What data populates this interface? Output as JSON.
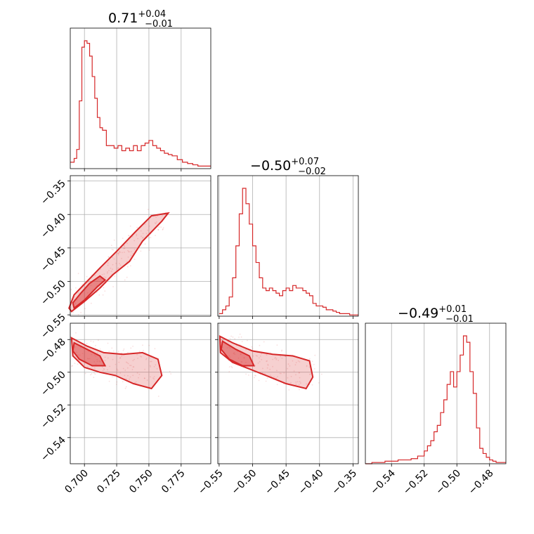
{
  "figure": {
    "accent_color": "#d62728",
    "background": "#ffffff"
  },
  "chart_data": [
    {
      "type": "histogram",
      "panel": "marginal-param-1",
      "title": {
        "median": "0.71",
        "plus": "+0.04",
        "minus": "−0.01"
      },
      "xlim": [
        0.689,
        0.798
      ],
      "xticks": [
        "0.700",
        "0.725",
        "0.750",
        "0.775"
      ],
      "xtick_values": [
        0.7,
        0.725,
        0.75,
        0.775
      ],
      "grid": true,
      "x": [
        0.689,
        0.692,
        0.694,
        0.696,
        0.698,
        0.7,
        0.702,
        0.704,
        0.706,
        0.708,
        0.71,
        0.712,
        0.714,
        0.717,
        0.72,
        0.723,
        0.726,
        0.729,
        0.732,
        0.735,
        0.738,
        0.741,
        0.744,
        0.747,
        0.75,
        0.753,
        0.756,
        0.759,
        0.762,
        0.765,
        0.768,
        0.772,
        0.776,
        0.78,
        0.784,
        0.788,
        0.792,
        0.796
      ],
      "density": [
        0.05,
        0.08,
        0.15,
        0.53,
        0.95,
        1.0,
        0.98,
        0.88,
        0.72,
        0.55,
        0.4,
        0.32,
        0.3,
        0.18,
        0.18,
        0.16,
        0.18,
        0.14,
        0.16,
        0.14,
        0.18,
        0.14,
        0.18,
        0.2,
        0.22,
        0.18,
        0.16,
        0.14,
        0.12,
        0.11,
        0.1,
        0.07,
        0.05,
        0.04,
        0.03,
        0.02,
        0.02,
        0.02
      ]
    },
    {
      "type": "histogram",
      "panel": "marginal-param-2",
      "title": {
        "median": "−0.50",
        "plus": "+0.07",
        "minus": "−0.02"
      },
      "xlim": [
        -0.552,
        -0.342
      ],
      "xticks": [
        "−0.55",
        "−0.50",
        "−0.45",
        "−0.40",
        "−0.35"
      ],
      "xtick_values": [
        -0.55,
        -0.5,
        -0.45,
        -0.4,
        -0.35
      ],
      "grid": true,
      "x": [
        -0.55,
        -0.545,
        -0.54,
        -0.535,
        -0.53,
        -0.525,
        -0.52,
        -0.515,
        -0.51,
        -0.505,
        -0.5,
        -0.495,
        -0.49,
        -0.485,
        -0.48,
        -0.475,
        -0.47,
        -0.465,
        -0.46,
        -0.455,
        -0.45,
        -0.445,
        -0.44,
        -0.435,
        -0.43,
        -0.425,
        -0.42,
        -0.415,
        -0.41,
        -0.405,
        -0.4,
        -0.395,
        -0.39,
        -0.385,
        -0.38,
        -0.375,
        -0.37,
        -0.365,
        -0.36,
        -0.355,
        -0.35,
        -0.345
      ],
      "density": [
        0.02,
        0.05,
        0.08,
        0.15,
        0.3,
        0.55,
        0.8,
        1.0,
        0.88,
        0.72,
        0.55,
        0.42,
        0.3,
        0.22,
        0.2,
        0.22,
        0.2,
        0.18,
        0.16,
        0.2,
        0.22,
        0.2,
        0.24,
        0.22,
        0.22,
        0.2,
        0.18,
        0.16,
        0.1,
        0.08,
        0.08,
        0.07,
        0.05,
        0.05,
        0.04,
        0.03,
        0.02,
        0.02,
        0.02,
        0.01,
        0.01,
        0.01
      ]
    },
    {
      "type": "histogram",
      "panel": "marginal-param-3",
      "title": {
        "median": "−0.49",
        "plus": "+0.01",
        "minus": "−0.01"
      },
      "xlim": [
        -0.556,
        -0.47
      ],
      "xticks": [
        "−0.54",
        "−0.52",
        "−0.50",
        "−0.48"
      ],
      "xtick_values": [
        -0.54,
        -0.52,
        -0.5,
        -0.48
      ],
      "grid": true,
      "x": [
        -0.556,
        -0.552,
        -0.548,
        -0.544,
        -0.54,
        -0.536,
        -0.532,
        -0.528,
        -0.526,
        -0.524,
        -0.522,
        -0.52,
        -0.518,
        -0.516,
        -0.514,
        -0.512,
        -0.51,
        -0.508,
        -0.506,
        -0.504,
        -0.502,
        -0.5,
        -0.498,
        -0.496,
        -0.494,
        -0.492,
        -0.49,
        -0.488,
        -0.486,
        -0.484,
        -0.482,
        -0.48,
        -0.478,
        -0.476,
        -0.474,
        -0.472
      ],
      "density": [
        0.0,
        0.01,
        0.01,
        0.02,
        0.02,
        0.03,
        0.03,
        0.04,
        0.04,
        0.06,
        0.06,
        0.1,
        0.14,
        0.18,
        0.25,
        0.3,
        0.4,
        0.5,
        0.62,
        0.72,
        0.6,
        0.72,
        0.85,
        1.0,
        0.95,
        0.72,
        0.55,
        0.28,
        0.12,
        0.08,
        0.05,
        0.03,
        0.02,
        0.01,
        0.01,
        0.01
      ]
    },
    {
      "type": "contour",
      "panel": "joint-param1-param2",
      "xlim": [
        0.689,
        0.798
      ],
      "ylim": [
        -0.552,
        -0.342
      ],
      "yticks": [
        "−0.35",
        "−0.40",
        "−0.45",
        "−0.50",
        "−0.55"
      ],
      "ytick_values": [
        -0.35,
        -0.4,
        -0.45,
        -0.5,
        -0.55
      ],
      "grid": true,
      "outer_contour": [
        [
          0.69,
          -0.545
        ],
        [
          0.7,
          -0.53
        ],
        [
          0.712,
          -0.51
        ],
        [
          0.722,
          -0.49
        ],
        [
          0.735,
          -0.47
        ],
        [
          0.745,
          -0.44
        ],
        [
          0.76,
          -0.41
        ],
        [
          0.765,
          -0.398
        ],
        [
          0.752,
          -0.402
        ],
        [
          0.74,
          -0.425
        ],
        [
          0.725,
          -0.455
        ],
        [
          0.712,
          -0.48
        ],
        [
          0.702,
          -0.5
        ],
        [
          0.692,
          -0.52
        ],
        [
          0.688,
          -0.54
        ]
      ],
      "inner_contour": [
        [
          0.692,
          -0.54
        ],
        [
          0.7,
          -0.528
        ],
        [
          0.71,
          -0.508
        ],
        [
          0.716,
          -0.498
        ],
        [
          0.712,
          -0.492
        ],
        [
          0.704,
          -0.503
        ],
        [
          0.697,
          -0.518
        ],
        [
          0.691,
          -0.532
        ]
      ]
    },
    {
      "type": "contour",
      "panel": "joint-param1-param3",
      "xlim": [
        0.689,
        0.798
      ],
      "ylim": [
        -0.556,
        -0.47
      ],
      "yticks": [
        "−0.48",
        "−0.50",
        "−0.52",
        "−0.54"
      ],
      "ytick_values": [
        -0.48,
        -0.5,
        -0.52,
        -0.54
      ],
      "grid": true,
      "outer_contour": [
        [
          0.69,
          -0.479
        ],
        [
          0.702,
          -0.484
        ],
        [
          0.715,
          -0.488
        ],
        [
          0.73,
          -0.489
        ],
        [
          0.745,
          -0.488
        ],
        [
          0.757,
          -0.492
        ],
        [
          0.76,
          -0.502
        ],
        [
          0.752,
          -0.51
        ],
        [
          0.738,
          -0.507
        ],
        [
          0.724,
          -0.502
        ],
        [
          0.712,
          -0.5
        ],
        [
          0.7,
          -0.497
        ],
        [
          0.691,
          -0.49
        ]
      ],
      "inner_contour": [
        [
          0.692,
          -0.482
        ],
        [
          0.702,
          -0.486
        ],
        [
          0.712,
          -0.49
        ],
        [
          0.716,
          -0.496
        ],
        [
          0.706,
          -0.496
        ],
        [
          0.696,
          -0.492
        ],
        [
          0.691,
          -0.487
        ]
      ]
    },
    {
      "type": "contour",
      "panel": "joint-param2-param3",
      "xlim": [
        -0.552,
        -0.342
      ],
      "ylim": [
        -0.556,
        -0.47
      ],
      "grid": true,
      "outer_contour": [
        [
          -0.549,
          -0.478
        ],
        [
          -0.53,
          -0.482
        ],
        [
          -0.5,
          -0.487
        ],
        [
          -0.47,
          -0.489
        ],
        [
          -0.44,
          -0.49
        ],
        [
          -0.415,
          -0.493
        ],
        [
          -0.41,
          -0.503
        ],
        [
          -0.42,
          -0.51
        ],
        [
          -0.45,
          -0.507
        ],
        [
          -0.48,
          -0.502
        ],
        [
          -0.505,
          -0.498
        ],
        [
          -0.53,
          -0.494
        ],
        [
          -0.548,
          -0.488
        ]
      ],
      "inner_contour": [
        [
          -0.545,
          -0.481
        ],
        [
          -0.525,
          -0.486
        ],
        [
          -0.505,
          -0.49
        ],
        [
          -0.498,
          -0.496
        ],
        [
          -0.515,
          -0.496
        ],
        [
          -0.535,
          -0.492
        ],
        [
          -0.547,
          -0.486
        ]
      ]
    }
  ]
}
